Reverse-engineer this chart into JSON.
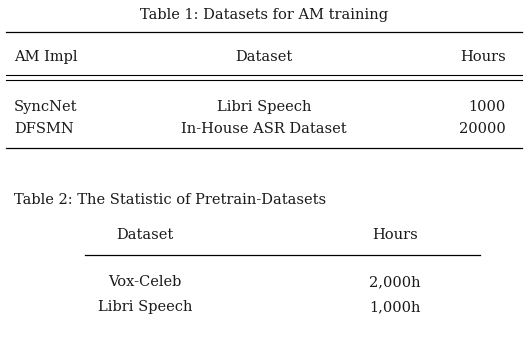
{
  "table1_title": "Table 1: Datasets for AM training",
  "table1_headers": [
    "AM Impl",
    "Dataset",
    "Hours"
  ],
  "table1_rows": [
    [
      "SyncNet",
      "Libri Speech",
      "1000"
    ],
    [
      "DFSMN",
      "In-House ASR Dataset",
      "20000"
    ]
  ],
  "table2_title": "Table 2: The Statistic of Pretrain-Datasets",
  "table2_headers": [
    "Dataset",
    "Hours"
  ],
  "table2_rows": [
    [
      "Vox-Celeb",
      "2,000h"
    ],
    [
      "Libri Speech",
      "1,000h"
    ]
  ],
  "bg_color": "#ffffff",
  "text_color": "#1a1a1a",
  "font_size": 10.5,
  "title_font_size": 10.5,
  "figwidth": 5.28,
  "figheight": 3.46,
  "dpi": 100
}
